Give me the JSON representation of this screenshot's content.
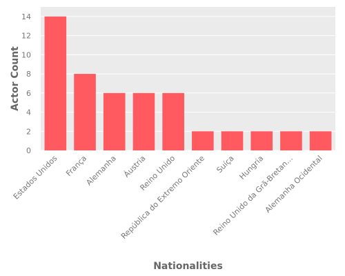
{
  "chart_data": {
    "type": "bar",
    "title": "",
    "xlabel": "Nationalities",
    "ylabel": "Actor Count",
    "categories": [
      "Estados Unidos",
      "França",
      "Alemanha",
      "Áustria",
      "Reino Unido",
      "República do Extremo Oriente",
      "Suíça",
      "Hungria",
      "Reino Unido da Grã-Bretan…",
      "Alemanha Ocidental"
    ],
    "values": [
      14,
      8,
      6,
      6,
      6,
      2,
      2,
      2,
      2,
      2
    ],
    "ylim": [
      0,
      15
    ],
    "yticks": [
      0,
      2,
      4,
      6,
      8,
      10,
      12,
      14
    ],
    "grid": true,
    "colors": {
      "bar": "#ff5a5f",
      "plot_background": "#ebebeb",
      "grid": "#ffffff"
    }
  }
}
